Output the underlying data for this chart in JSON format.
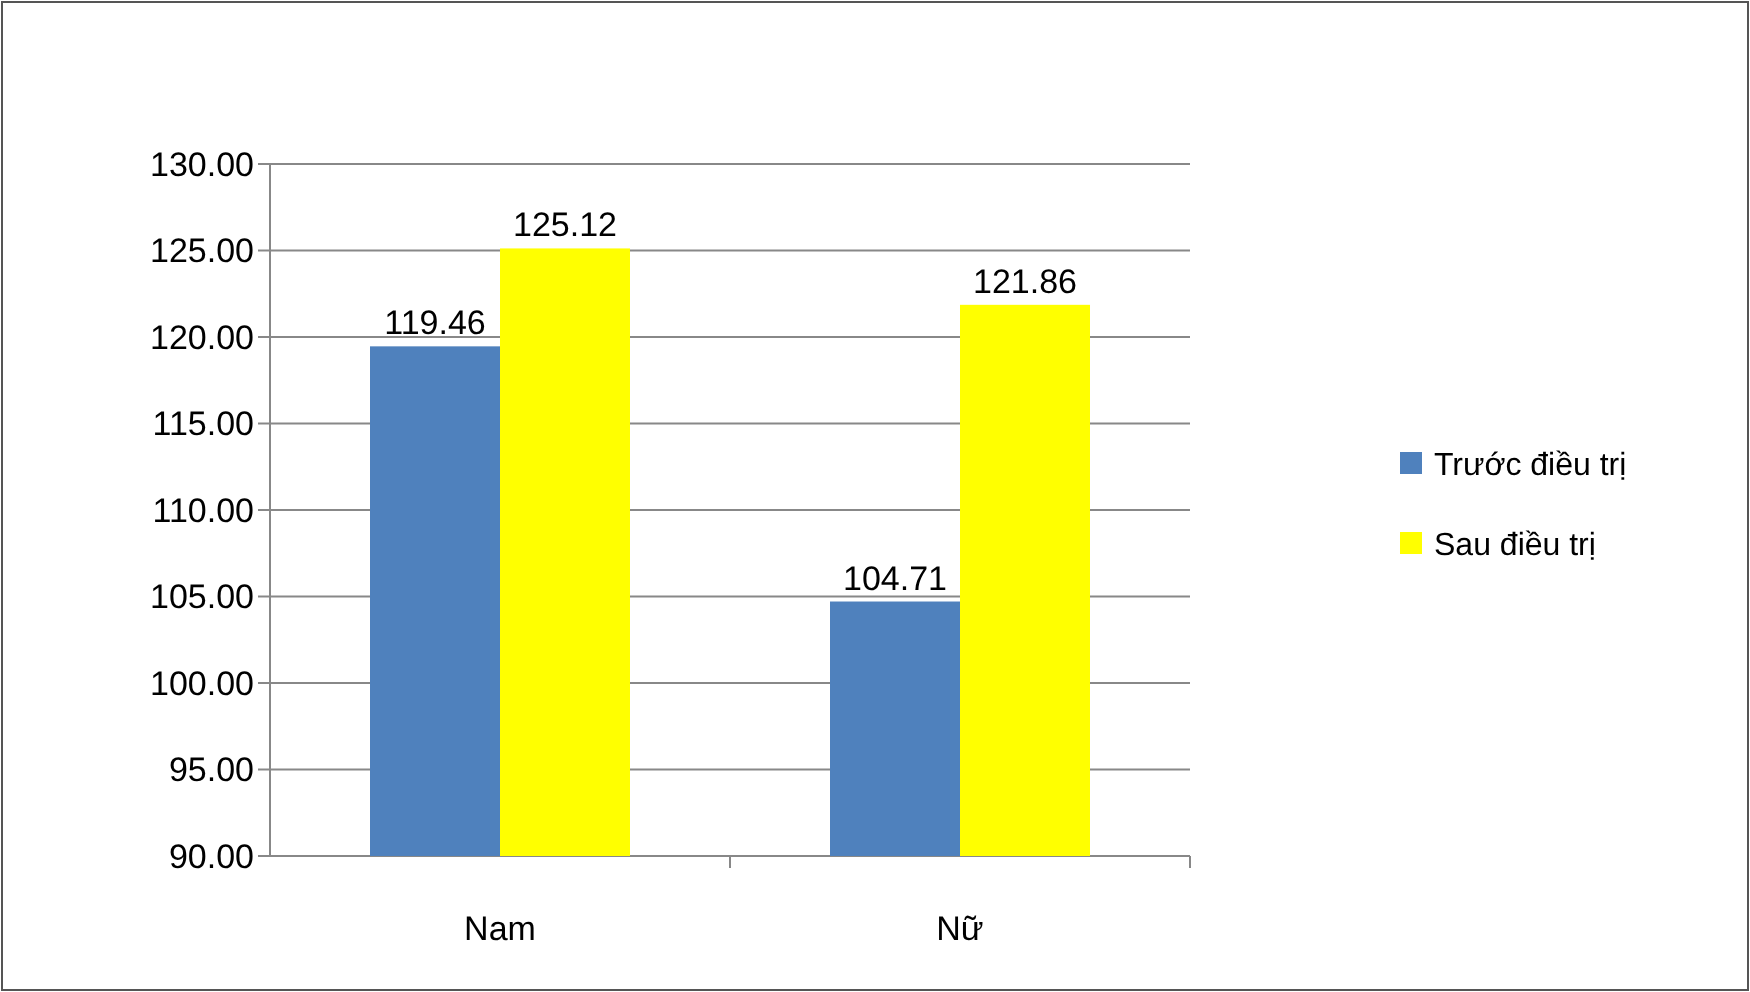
{
  "chart_data": {
    "type": "bar",
    "categories": [
      "Nam",
      "Nữ"
    ],
    "series": [
      {
        "name": "Trước điều trị",
        "color": "#4f81bd",
        "values": [
          119.46,
          104.71
        ]
      },
      {
        "name": "Sau điều trị",
        "color": "#ffff00",
        "values": [
          125.12,
          121.86
        ]
      }
    ],
    "ylim": [
      90,
      130
    ],
    "yticks": [
      {
        "value": 90,
        "label": "90.00"
      },
      {
        "value": 95,
        "label": "95.00"
      },
      {
        "value": 100,
        "label": "100.00"
      },
      {
        "value": 105,
        "label": "105.00"
      },
      {
        "value": 110,
        "label": "110.00"
      },
      {
        "value": 115,
        "label": "115.00"
      },
      {
        "value": 120,
        "label": "120.00"
      },
      {
        "value": 125,
        "label": "125.00"
      },
      {
        "value": 130,
        "label": "130.00"
      }
    ],
    "grid": "y",
    "legend": "right",
    "data_labels": true
  }
}
